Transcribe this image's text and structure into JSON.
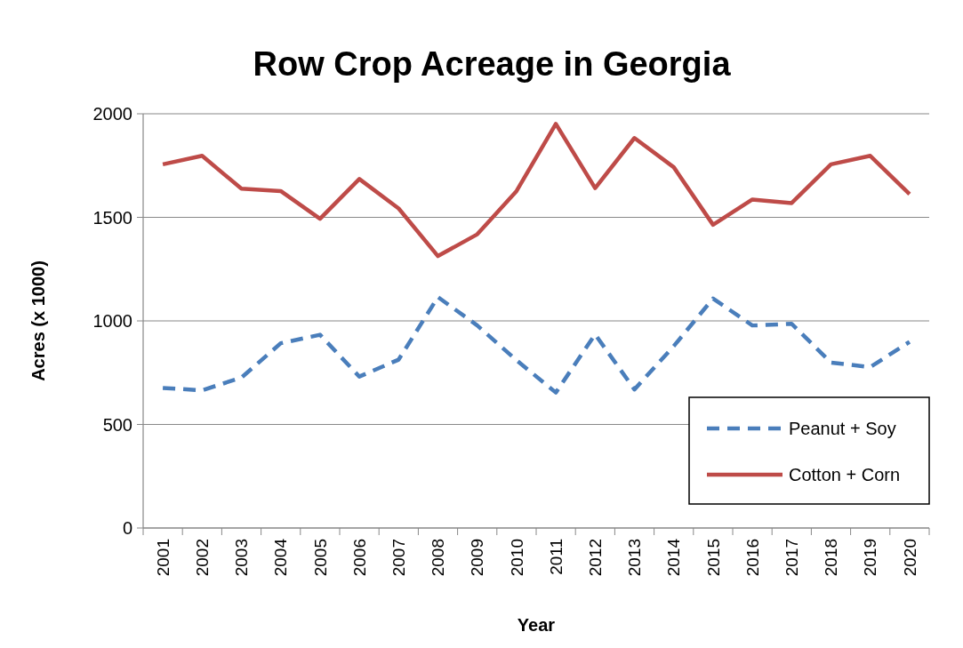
{
  "chart_data": {
    "type": "line",
    "title": "Row Crop Acreage in Georgia",
    "xlabel": "Year",
    "ylabel": "Acres (x 1000)",
    "categories": [
      "2001",
      "2002",
      "2003",
      "2004",
      "2005",
      "2006",
      "2007",
      "2008",
      "2009",
      "2010",
      "2011",
      "2012",
      "2013",
      "2014",
      "2015",
      "2016",
      "2017",
      "2018",
      "2019",
      "2020"
    ],
    "series": [
      {
        "name": "Peanut + Soy",
        "color": "#4a7ebb",
        "line_style": "dashed",
        "values": [
          676,
          665,
          726,
          892,
          933,
          731,
          813,
          1115,
          978,
          810,
          654,
          935,
          669,
          878,
          1108,
          978,
          986,
          799,
          777,
          899
        ]
      },
      {
        "name": "Cotton + Corn",
        "color": "#be4b48",
        "line_style": "solid",
        "values": [
          1756,
          1797,
          1638,
          1627,
          1493,
          1685,
          1543,
          1313,
          1418,
          1627,
          1951,
          1641,
          1883,
          1742,
          1464,
          1586,
          1569,
          1756,
          1797,
          1612
        ]
      }
    ],
    "ylim": [
      0,
      2000
    ],
    "yticks": [
      0,
      500,
      1000,
      1500,
      2000
    ],
    "grid": "y",
    "legend": "bottom right",
    "marker": "none"
  }
}
